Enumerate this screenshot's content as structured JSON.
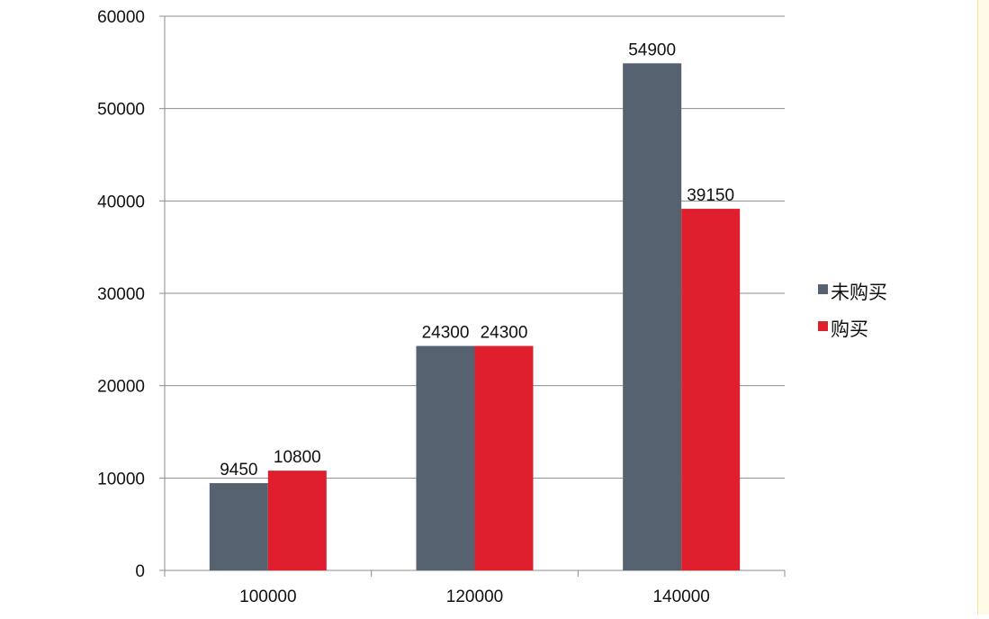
{
  "chart_data": {
    "type": "bar",
    "title": "",
    "xlabel": "",
    "ylabel": "",
    "categories": [
      "100000",
      "120000",
      "140000"
    ],
    "series": [
      {
        "name": "未购买",
        "values": [
          9450,
          24300,
          54900
        ]
      },
      {
        "name": "购买",
        "values": [
          10800,
          24300,
          39150
        ]
      }
    ],
    "ylim": [
      0,
      60000
    ],
    "yticks": [
      "0",
      "10000",
      "20000",
      "30000",
      "40000",
      "50000",
      "60000"
    ],
    "grid": true,
    "legend_position": "right",
    "colors": [
      "#566270",
      "#df1f2d"
    ]
  }
}
